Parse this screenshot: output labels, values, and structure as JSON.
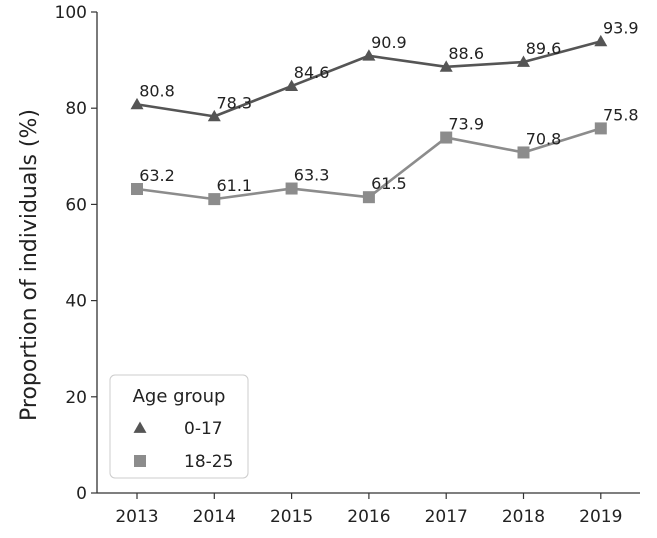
{
  "chart_data": {
    "type": "line",
    "title": "",
    "xlabel": "",
    "ylabel": "Proportion of individuals (%)",
    "x": [
      "2013",
      "2014",
      "2015",
      "2016",
      "2017",
      "2018",
      "2019"
    ],
    "ylim": [
      0,
      100
    ],
    "yticks": [
      "0",
      "20",
      "40",
      "60",
      "80",
      "100"
    ],
    "grid": false,
    "legend": {
      "title": "Age group",
      "placement": "bottom-left"
    },
    "series": [
      {
        "name": "0-17",
        "marker": "triangle",
        "color": "#555555",
        "values": [
          80.8,
          78.3,
          84.6,
          90.9,
          88.6,
          89.6,
          93.9
        ],
        "labels": [
          "80.8",
          "78.3",
          "84.6",
          "90.9",
          "88.6",
          "89.6",
          "93.9"
        ]
      },
      {
        "name": "18-25",
        "marker": "square",
        "color": "#8c8c8c",
        "values": [
          63.2,
          61.1,
          63.3,
          61.5,
          73.9,
          70.8,
          75.8
        ],
        "labels": [
          "63.2",
          "61.1",
          "63.3",
          "61.5",
          "73.9",
          "70.8",
          "75.8"
        ]
      }
    ]
  }
}
